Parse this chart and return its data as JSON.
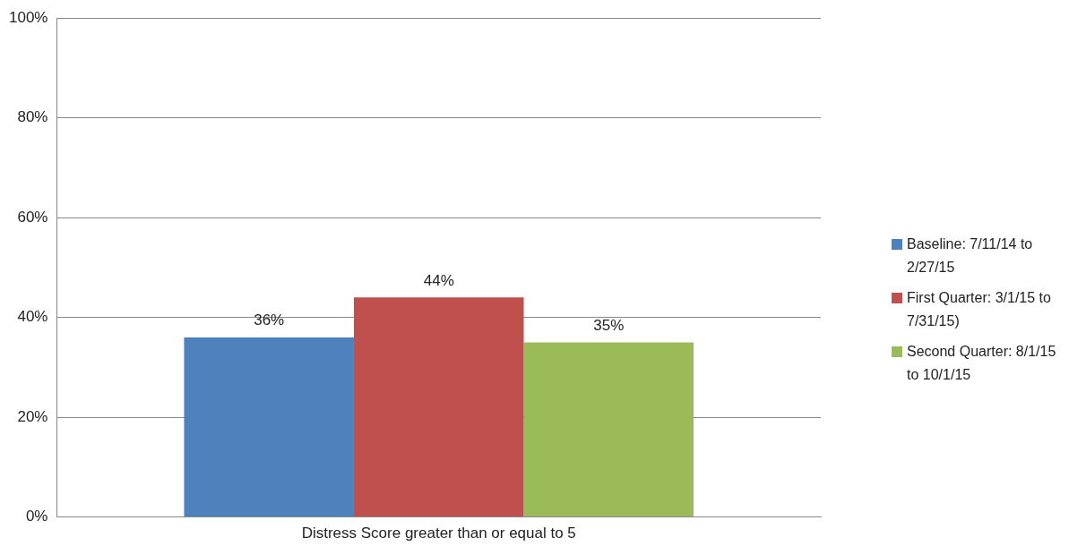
{
  "chart_data": {
    "type": "bar",
    "categories": [
      "Distress Score greater than or equal to 5"
    ],
    "series": [
      {
        "name": "Baseline: 7/11/14 to 2/27/15",
        "color": "#4f81bd",
        "values": [
          36
        ],
        "value_labels": [
          "36%"
        ]
      },
      {
        "name": "First Quarter: 3/1/15 to 7/31/15)",
        "color": "#c0504d",
        "values": [
          44
        ],
        "value_labels": [
          "44%"
        ]
      },
      {
        "name": "Second Quarter: 8/1/15 to 10/1/15",
        "color": "#9bbb59",
        "values": [
          35
        ],
        "value_labels": [
          "35%"
        ]
      }
    ],
    "ylim": [
      0,
      100
    ],
    "yticks": [
      {
        "value": 0,
        "label": "0%"
      },
      {
        "value": 20,
        "label": "20%"
      },
      {
        "value": 40,
        "label": "40%"
      },
      {
        "value": 60,
        "label": "60%"
      },
      {
        "value": 80,
        "label": "80%"
      },
      {
        "value": 100,
        "label": "100%"
      }
    ],
    "grid": "y",
    "legend": "right"
  }
}
